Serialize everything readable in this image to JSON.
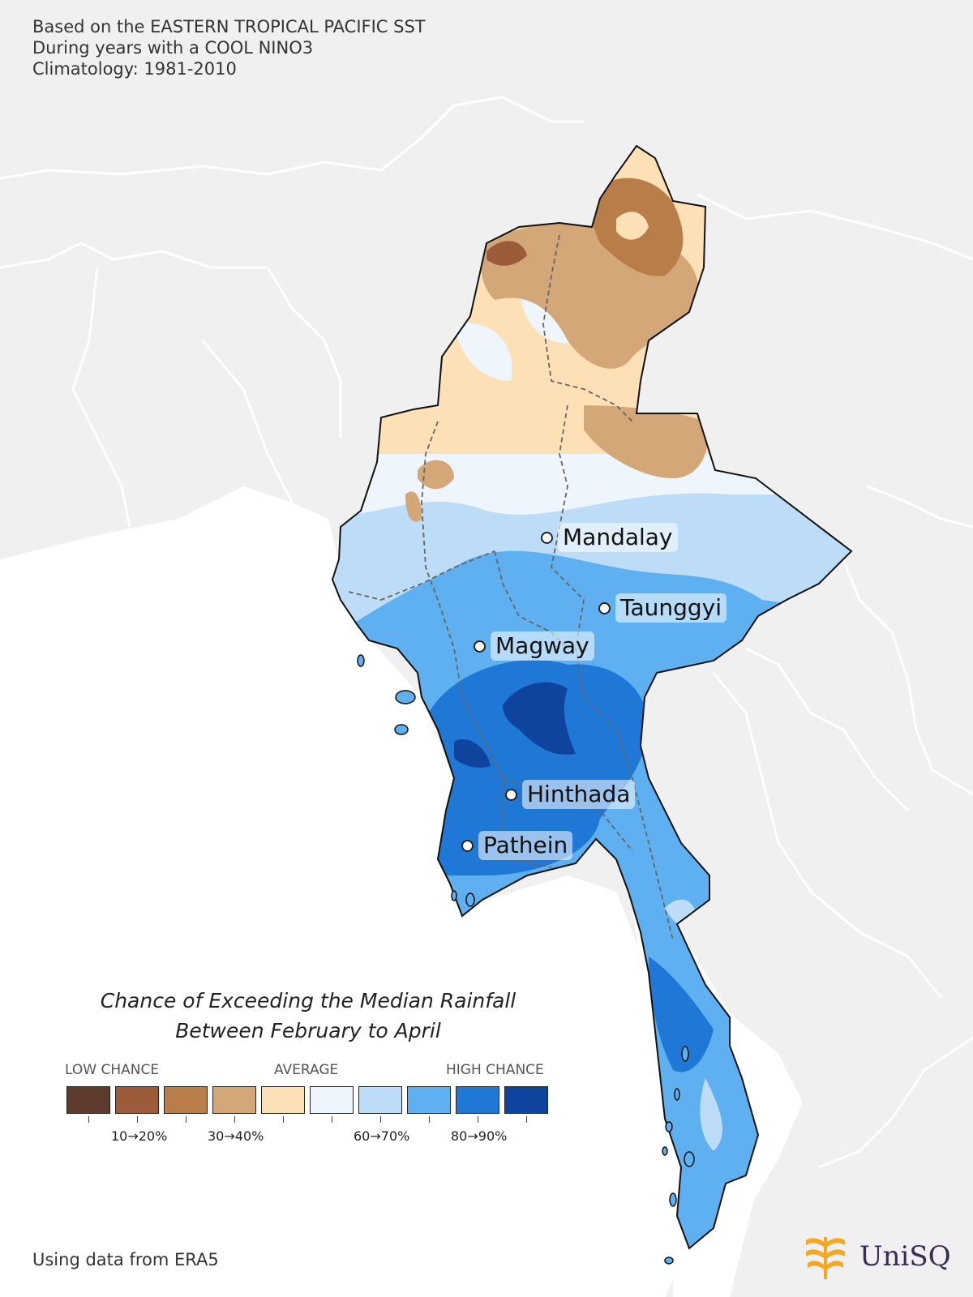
{
  "header": {
    "line1": "Based on the EASTERN TROPICAL PACIFIC SST",
    "line2": "During years with a COOL NINO3",
    "line3": "Climatology: 1981-2010"
  },
  "cities": [
    {
      "name": "Mandalay"
    },
    {
      "name": "Taunggyi"
    },
    {
      "name": "Magway"
    },
    {
      "name": "Hinthada"
    },
    {
      "name": "Pathein"
    }
  ],
  "legend": {
    "title_line1": "Chance of Exceeding the Median Rainfall",
    "title_line2": "Between February to April",
    "low_label": "LOW CHANCE",
    "avg_label": "AVERAGE",
    "high_label": "HIGH CHANCE",
    "colors": [
      "#5e3c2d",
      "#9c5b3b",
      "#b97d4a",
      "#d3a778",
      "#fde0b6",
      "#eef5fc",
      "#bcdcf7",
      "#5eb0f0",
      "#1f78d6",
      "#0f449e"
    ],
    "tick_labels": [
      "10→20%",
      "30→40%",
      "60→70%",
      "80→90%"
    ]
  },
  "footer": {
    "source": "Using data from ERA5"
  },
  "logo": {
    "text": "UniSQ"
  },
  "palette": {
    "land_background": "#f0f0f0",
    "sea": "#ffffff",
    "border": "#ffffff"
  }
}
